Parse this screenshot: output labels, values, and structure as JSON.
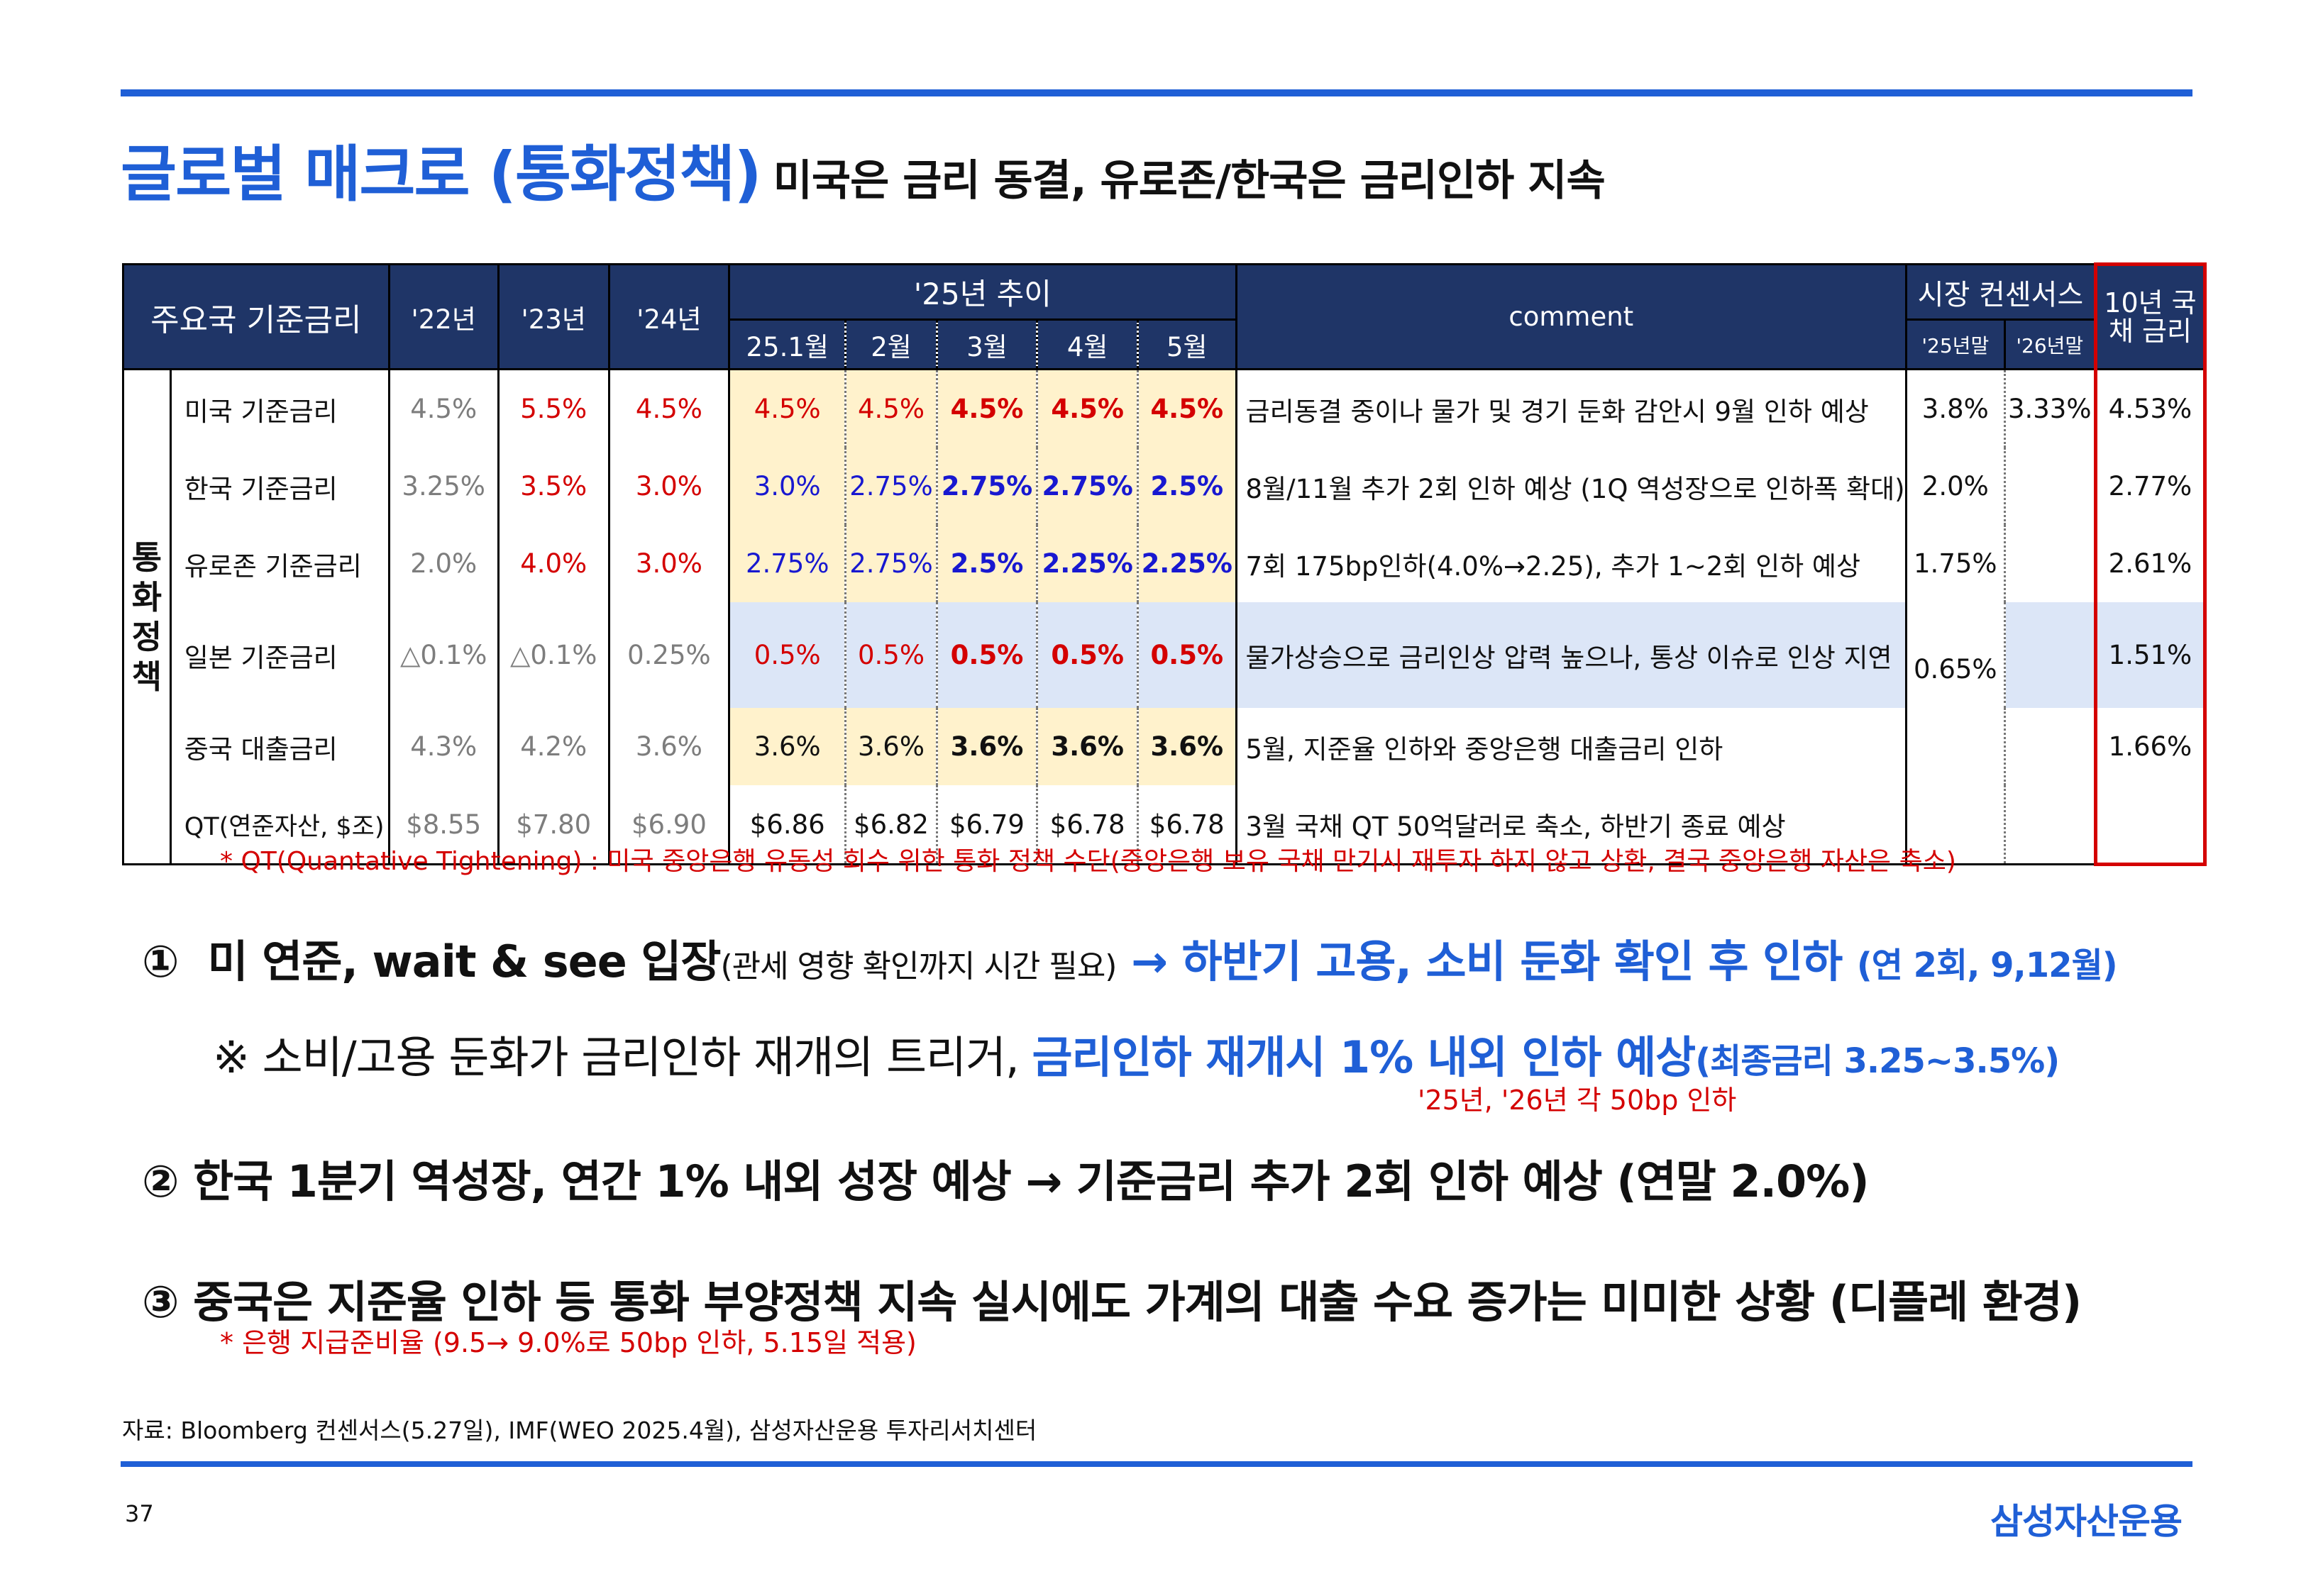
{
  "title": {
    "main": "글로벌 매크로 (통화정책)",
    "sub": "미국은 금리 동결, 유로존/한국은 금리인하 지속"
  },
  "table": {
    "header": {
      "rate_col": "주요국 기준금리",
      "y22": "'22년",
      "y23": "'23년",
      "y24": "'24년",
      "trend": "'25년 추이",
      "months": [
        "25.1월",
        "2월",
        "3월",
        "4월",
        "5월"
      ],
      "comment": "comment",
      "consensus": "시장 컨센서스",
      "cons_25": "'25년말",
      "cons_26": "'26년말",
      "bond": "10년 국채 금리"
    },
    "group_label": "통화 정책",
    "rows": [
      {
        "name": "미국 기준금리",
        "y22": "4.5%",
        "y23": "5.5%",
        "y24": "4.5%",
        "m": [
          "4.5%",
          "4.5%",
          "4.5%",
          "4.5%",
          "4.5%"
        ],
        "comment": "금리동결 중이나 물가 및 경기 둔화 감안시 9월 인하 예상",
        "c25": "3.8%",
        "c26": "3.33%",
        "bond": "4.53%"
      },
      {
        "name": "한국 기준금리",
        "y22": "3.25%",
        "y23": "3.5%",
        "y24": "3.0%",
        "m": [
          "3.0%",
          "2.75%",
          "2.75%",
          "2.75%",
          "2.5%"
        ],
        "comment": "8월/11월 추가 2회 인하 예상 (1Q 역성장으로 인하폭 확대)",
        "c25": "2.0%",
        "c26": "",
        "bond": "2.77%"
      },
      {
        "name": "유로존 기준금리",
        "y22": "2.0%",
        "y23": "4.0%",
        "y24": "3.0%",
        "m": [
          "2.75%",
          "2.75%",
          "2.5%",
          "2.25%",
          "2.25%"
        ],
        "comment": "7회 175bp인하(4.0%→2.25), 추가 1~2회 인하 예상",
        "c25": "1.75%",
        "c26": "",
        "bond": "2.61%"
      },
      {
        "name": "일본 기준금리",
        "y22": "△0.1%",
        "y23": "△0.1%",
        "y24": "0.25%",
        "m": [
          "0.5%",
          "0.5%",
          "0.5%",
          "0.5%",
          "0.5%"
        ],
        "comment": "물가상승으로 금리인상 압력 높으나, 통상 이슈로 인상 지연",
        "c25": "0.65%",
        "c26": "",
        "bond": "1.51%"
      },
      {
        "name": "중국 대출금리",
        "y22": "4.3%",
        "y23": "4.2%",
        "y24": "3.6%",
        "m": [
          "3.6%",
          "3.6%",
          "3.6%",
          "3.6%",
          "3.6%"
        ],
        "comment": "5월, 지준율 인하와 중앙은행 대출금리 인하",
        "c25": "",
        "c26": "",
        "bond": "1.66%"
      },
      {
        "name": "QT(연준자산, $조)",
        "y22": "$8.55",
        "y23": "$7.80",
        "y24": "$6.90",
        "m": [
          "$6.86",
          "$6.82",
          "$6.79",
          "$6.78",
          "$6.78"
        ],
        "comment": "3월 국채 QT 50억달러로 축소, 하반기 종료 예상",
        "c25": "",
        "c26": "",
        "bond": ""
      }
    ]
  },
  "qt_note": "* QT(Quantative Tightening) : 미국 중앙은행 유동성 회수 위한 통화 정책 수단(중앙은행 보유 국채 만기시 재투자 하지 않고 상환, 결국 중앙은행 자산은 축소)",
  "bullets": {
    "b1": {
      "num": "①",
      "bold": "미 연준,  wait & see 입장",
      "small": "(관세 영향 확인까지 시간 필요)",
      "arrow": "→ 하반기 고용, 소비 둔화 확인 후 인하",
      "tail": "(연 2회, 9,12월)"
    },
    "sub1": {
      "mark": "※ 소비/고용 둔화가 금리인하 재개의 트리거,",
      "blue": "금리인하 재개시 1% 내외 인하 예상",
      "tail": "(최종금리 3.25~3.5%)",
      "note": "'25년, '26년 각 50bp 인하"
    },
    "b2": "②  한국 1분기 역성장, 연간 1% 내외 성장 예상 → 기준금리 추가 2회 인하 예상 (연말 2.0%)",
    "b3": "③  중국은 지준율 인하 등 통화 부양정책 지속 실시에도 가계의 대출 수요 증가는 미미한 상황 (디플레 환경)",
    "b3_note": "* 은행 지급준비율 (9.5→ 9.0%로 50bp 인하, 5.15일 적용)"
  },
  "source": "자료: Bloomberg 컨센서스(5.27일), IMF(WEO 2025.4월), 삼성자산운용 투자리서치센터",
  "page_number": "37",
  "logo": "삼성자산운용",
  "colors": {
    "accent": "#1f5fd6",
    "header_bg": "#1f3567",
    "red": "#d40000",
    "yellow": "#fff2cc",
    "light_blue": "#dce6f7"
  }
}
